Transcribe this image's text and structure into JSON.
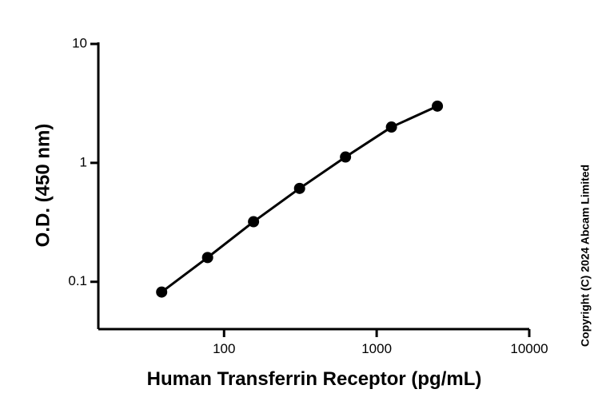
{
  "chart_data": {
    "type": "line",
    "x_label": "Human Transferrin Receptor (pg/mL)",
    "y_label": "O.D. (450 nm)",
    "annotation": "Copyright (C) 2024 Abcam Limited",
    "x": [
      39,
      78,
      156,
      312.5,
      625,
      1250,
      2500
    ],
    "series": [
      {
        "color": "#000000",
        "values": [
          0.082,
          0.16,
          0.32,
          0.61,
          1.12,
          2.0,
          3.0
        ]
      }
    ],
    "xlog": true,
    "ylog": true,
    "xlim": [
      15,
      10000
    ],
    "ylim": [
      0.04,
      10
    ],
    "xticks": [
      100,
      1000,
      10000
    ],
    "yticks": [
      0.1,
      1,
      10
    ]
  }
}
